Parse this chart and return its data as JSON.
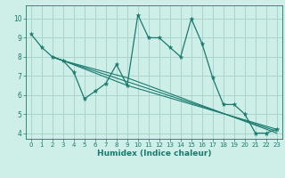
{
  "background_color": "#ceeee8",
  "grid_color": "#aad4ce",
  "line_color": "#1a7a6e",
  "xlabel": "Humidex (Indice chaleur)",
  "xlim": [
    -0.5,
    23.5
  ],
  "ylim": [
    3.7,
    10.7
  ],
  "yticks": [
    4,
    5,
    6,
    7,
    8,
    9,
    10
  ],
  "xticks": [
    0,
    1,
    2,
    3,
    4,
    5,
    6,
    7,
    8,
    9,
    10,
    11,
    12,
    13,
    14,
    15,
    16,
    17,
    18,
    19,
    20,
    21,
    22,
    23
  ],
  "series": [
    {
      "x": [
        0,
        1,
        2,
        3,
        4,
        5,
        6,
        7,
        8,
        9,
        10,
        11,
        12,
        13,
        14,
        15,
        16,
        17,
        18,
        19,
        20,
        21,
        22,
        23
      ],
      "y": [
        9.2,
        8.5,
        8.0,
        7.8,
        7.2,
        5.8,
        6.2,
        6.6,
        7.6,
        6.5,
        10.2,
        9.0,
        9.0,
        8.5,
        8.0,
        10.0,
        8.7,
        6.9,
        5.5,
        5.5,
        5.0,
        4.0,
        4.0,
        4.2
      ],
      "marker": true
    },
    {
      "x": [
        2,
        3,
        9,
        23
      ],
      "y": [
        8.0,
        7.8,
        6.5,
        4.2
      ],
      "marker": false
    },
    {
      "x": [
        2,
        3,
        9,
        23
      ],
      "y": [
        8.0,
        7.8,
        6.7,
        4.1
      ],
      "marker": false
    },
    {
      "x": [
        2,
        3,
        9,
        23
      ],
      "y": [
        8.0,
        7.8,
        6.9,
        4.0
      ],
      "marker": false
    }
  ],
  "tick_fontsize": 5.0,
  "label_fontsize": 6.5
}
